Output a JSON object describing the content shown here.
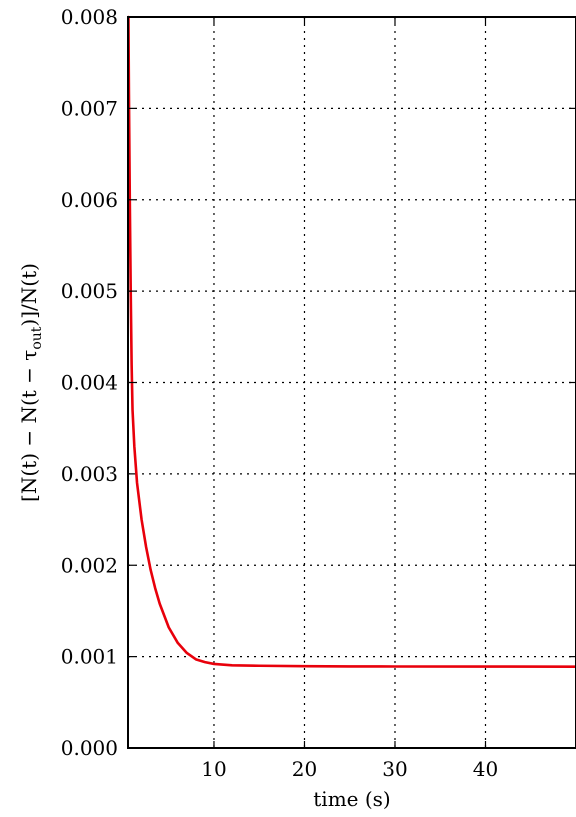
{
  "chart_data": {
    "type": "line",
    "title": "",
    "xlabel": "time (s)",
    "ylabel": "[N(t) − N(t − τout)]/N(t)",
    "ylabel_parts": {
      "pre": "[N(t) − N(t − τ",
      "sub": "out",
      "post": ")]/N(t)"
    },
    "xlim": [
      0.5,
      50
    ],
    "ylim": [
      0.0,
      0.008
    ],
    "xticks": [
      10,
      20,
      30,
      40
    ],
    "xtick_labels": [
      "10",
      "20",
      "30",
      "40"
    ],
    "yticks": [
      0.0,
      0.001,
      0.002,
      0.003,
      0.004,
      0.005,
      0.006,
      0.007,
      0.008
    ],
    "ytick_labels": [
      "0.000",
      "0.001",
      "0.002",
      "0.003",
      "0.004",
      "0.005",
      "0.006",
      "0.007",
      "0.008"
    ],
    "grid": true,
    "series": [
      {
        "color": "#e8000b",
        "x": [
          0.55,
          0.6,
          0.7,
          0.8,
          0.9,
          1.0,
          1.2,
          1.5,
          2.0,
          2.5,
          3.0,
          3.5,
          4.0,
          5.0,
          6.0,
          7.0,
          8.0,
          9.0,
          10.0,
          12.0,
          15.0,
          20.0,
          25.0,
          30.0,
          40.0,
          50.0
        ],
        "y": [
          0.008,
          0.0072,
          0.006,
          0.005,
          0.0042,
          0.0037,
          0.0033,
          0.0029,
          0.0025,
          0.0022,
          0.00195,
          0.00175,
          0.00158,
          0.00132,
          0.00115,
          0.00104,
          0.00097,
          0.00094,
          0.00092,
          0.000905,
          0.0009,
          0.000895,
          0.000893,
          0.000892,
          0.000891,
          0.00089
        ]
      }
    ]
  }
}
